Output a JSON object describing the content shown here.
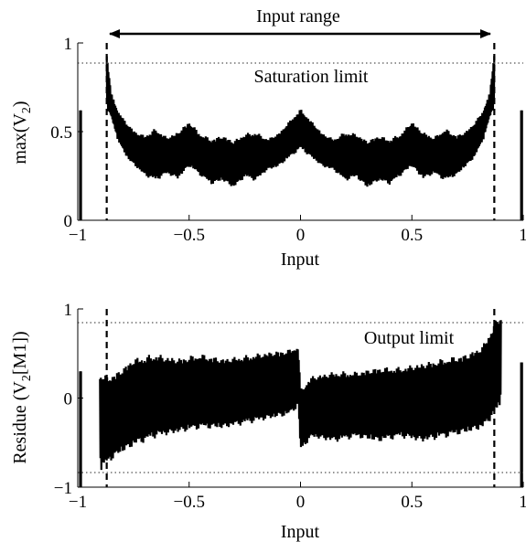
{
  "chart_data": [
    {
      "type": "line",
      "xlabel": "Input",
      "ylabel_main": "max(V",
      "ylabel_sub": "2",
      "ylabel_end": ")",
      "xlim": [
        -1,
        1
      ],
      "ylim": [
        0,
        1
      ],
      "x_ticks": [
        -1,
        -0.5,
        0,
        0.5,
        1
      ],
      "x_tick_labels": [
        "−1",
        "−0.5",
        "0",
        "0.5",
        "1"
      ],
      "y_ticks": [
        0,
        0.5,
        1
      ],
      "y_tick_labels": [
        "0",
        "0.5",
        "1"
      ],
      "threshold_line": {
        "y": 0.9,
        "label": "Saturation limit"
      },
      "range_markers": [
        -0.87,
        0.87
      ],
      "range_arrow_label": "Input range",
      "envelope": {
        "x": [
          -0.87,
          -0.85,
          -0.82,
          -0.78,
          -0.74,
          -0.7,
          -0.65,
          -0.6,
          -0.55,
          -0.5,
          -0.45,
          -0.4,
          -0.35,
          -0.3,
          -0.25,
          -0.2,
          -0.15,
          -0.1,
          -0.05,
          0.0,
          0.05,
          0.1,
          0.15,
          0.2,
          0.25,
          0.3,
          0.35,
          0.4,
          0.45,
          0.5,
          0.55,
          0.6,
          0.65,
          0.7,
          0.74,
          0.78,
          0.82,
          0.85,
          0.87
        ],
        "upper": [
          0.95,
          0.72,
          0.62,
          0.55,
          0.5,
          0.48,
          0.52,
          0.47,
          0.5,
          0.56,
          0.49,
          0.46,
          0.48,
          0.45,
          0.49,
          0.5,
          0.46,
          0.49,
          0.56,
          0.63,
          0.56,
          0.49,
          0.46,
          0.5,
          0.49,
          0.45,
          0.48,
          0.46,
          0.49,
          0.56,
          0.5,
          0.47,
          0.52,
          0.48,
          0.5,
          0.55,
          0.62,
          0.72,
          0.95
        ],
        "lower": [
          0.62,
          0.58,
          0.45,
          0.35,
          0.3,
          0.25,
          0.22,
          0.26,
          0.23,
          0.3,
          0.25,
          0.2,
          0.22,
          0.18,
          0.24,
          0.22,
          0.28,
          0.3,
          0.35,
          0.4,
          0.35,
          0.3,
          0.28,
          0.22,
          0.24,
          0.18,
          0.22,
          0.2,
          0.25,
          0.3,
          0.23,
          0.26,
          0.22,
          0.25,
          0.3,
          0.35,
          0.45,
          0.58,
          0.62
        ]
      }
    },
    {
      "type": "line",
      "xlabel": "Input",
      "ylabel_main": "Residue (V",
      "ylabel_sub": "2",
      "ylabel_end": "[M1])",
      "xlim": [
        -1,
        1
      ],
      "ylim": [
        -1,
        1
      ],
      "x_ticks": [
        -1,
        -0.5,
        0,
        0.5,
        1
      ],
      "x_tick_labels": [
        "−1",
        "−0.5",
        "0",
        "0.5",
        "1"
      ],
      "y_ticks": [
        -1,
        0,
        1
      ],
      "y_tick_labels": [
        "−1",
        "0",
        "1"
      ],
      "threshold_lines": [
        0.85,
        -0.85
      ],
      "threshold_label": "Output limit",
      "range_markers": [
        -0.87,
        0.87
      ],
      "envelope": {
        "x": [
          -0.9,
          -0.87,
          -0.82,
          -0.75,
          -0.65,
          -0.55,
          -0.45,
          -0.35,
          -0.25,
          -0.15,
          -0.05,
          -0.01,
          0.0,
          0.05,
          0.15,
          0.25,
          0.35,
          0.45,
          0.55,
          0.65,
          0.75,
          0.82,
          0.87,
          0.9
        ],
        "upper": [
          0.3,
          0.25,
          0.3,
          0.45,
          0.5,
          0.45,
          0.5,
          0.45,
          0.48,
          0.52,
          0.55,
          0.6,
          0.1,
          0.25,
          0.3,
          0.3,
          0.35,
          0.35,
          0.4,
          0.45,
          0.5,
          0.6,
          0.85,
          0.95
        ],
        "lower": [
          -0.85,
          -0.75,
          -0.65,
          -0.55,
          -0.45,
          -0.4,
          -0.35,
          -0.35,
          -0.3,
          -0.25,
          -0.2,
          -0.1,
          -0.6,
          -0.45,
          -0.5,
          -0.45,
          -0.5,
          -0.45,
          -0.5,
          -0.45,
          -0.4,
          -0.35,
          -0.2,
          -0.1
        ]
      }
    }
  ]
}
